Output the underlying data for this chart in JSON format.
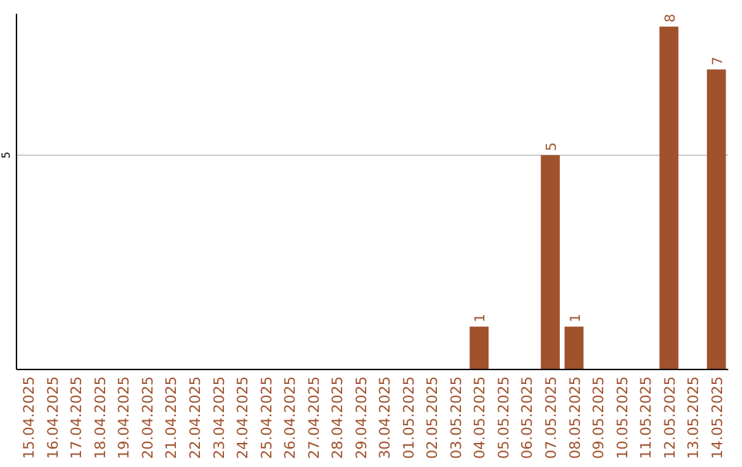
{
  "chart_data": {
    "type": "bar",
    "categories": [
      "15.04.2025",
      "16.04.2025",
      "17.04.2025",
      "18.04.2025",
      "19.04.2025",
      "20.04.2025",
      "21.04.2025",
      "22.04.2025",
      "23.04.2025",
      "24.04.2025",
      "25.04.2025",
      "26.04.2025",
      "27.04.2025",
      "28.04.2025",
      "29.04.2025",
      "30.04.2025",
      "01.05.2025",
      "02.05.2025",
      "03.05.2025",
      "04.05.2025",
      "05.05.2025",
      "06.05.2025",
      "07.05.2025",
      "08.05.2025",
      "09.05.2025",
      "10.05.2025",
      "11.05.2025",
      "12.05.2025",
      "13.05.2025",
      "14.05.2025"
    ],
    "values": [
      null,
      null,
      null,
      null,
      null,
      null,
      null,
      null,
      null,
      null,
      null,
      null,
      null,
      null,
      null,
      null,
      null,
      null,
      null,
      1,
      null,
      null,
      5,
      1,
      null,
      null,
      null,
      8,
      null,
      7
    ],
    "color": "#a0522d",
    "ylim": [
      0,
      8.3
    ],
    "yticks": [
      5
    ],
    "grid": "y",
    "data_labels": true
  }
}
